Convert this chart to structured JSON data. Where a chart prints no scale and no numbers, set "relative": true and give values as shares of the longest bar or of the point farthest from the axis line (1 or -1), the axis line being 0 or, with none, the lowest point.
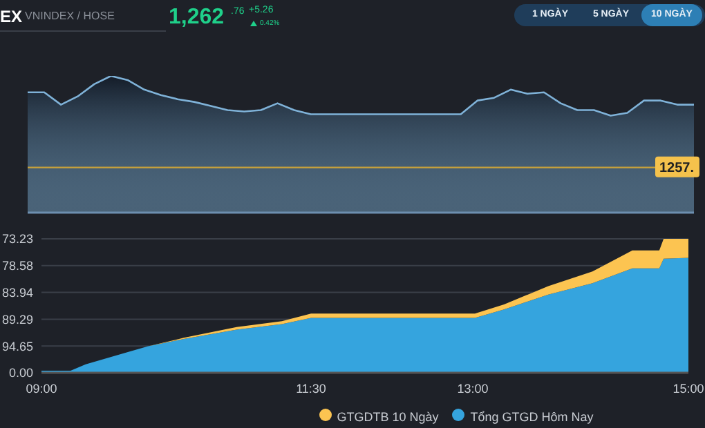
{
  "chart_data": [
    {
      "type": "area",
      "title": "EX",
      "subtitle": "VNINDEX / HOSE",
      "annotations": [
        "1,262",
        ".76",
        "+5.26",
        "0.42%",
        "1 NGÀY",
        "5 NGÀY",
        "10 NGÀY",
        "1257."
      ],
      "relative": true,
      "legend": false,
      "categories": [
        null,
        null,
        null,
        null,
        null,
        null,
        null,
        null,
        null,
        null,
        null,
        null,
        null,
        null,
        null,
        null,
        null,
        null,
        null,
        null,
        null,
        null,
        null,
        null,
        null,
        null,
        null,
        null,
        null,
        null,
        null,
        null,
        null,
        null,
        null,
        null,
        null,
        null,
        null,
        null,
        null
      ],
      "series": [
        {
          "color": "#7fb2d8",
          "values": [
            0.88,
            0.88,
            0.79,
            0.85,
            0.94,
            1.0,
            0.97,
            0.9,
            0.86,
            0.83,
            0.81,
            0.78,
            0.75,
            0.74,
            0.75,
            0.8,
            0.75,
            0.72,
            0.72,
            0.72,
            0.72,
            0.72,
            0.72,
            0.72,
            0.72,
            0.72,
            0.72,
            0.82,
            0.84,
            0.9,
            0.87,
            0.88,
            0.8,
            0.75,
            0.75,
            0.71,
            0.73,
            0.82,
            0.82,
            0.79,
            0.79
          ]
        }
      ],
      "ref_lines": [
        {
          "axis": "y",
          "value": 0.33,
          "color": "#c9a23a"
        }
      ]
    },
    {
      "type": "area",
      "stacked": true,
      "relative": true,
      "annotations": [
        "0.00",
        "94.65",
        "89.29",
        "83.94",
        "78.58",
        "73.23"
      ],
      "xlim": [
        9,
        15
      ],
      "xticks": [
        {
          "value": 9,
          "label": "09:00"
        },
        {
          "value": 11.5,
          "label": "11:30"
        },
        {
          "value": 13,
          "label": "13:00"
        },
        {
          "value": 15,
          "label": "15:00"
        }
      ],
      "grid": "y",
      "legend": "bottom",
      "x": [
        9.0,
        9.27,
        9.41,
        9.99,
        10.32,
        10.81,
        11.23,
        11.5,
        13.02,
        13.29,
        13.7,
        14.11,
        14.48,
        14.73,
        14.77,
        15.0
      ],
      "series": [
        {
          "name": "Tổng GTGD Hôm Nay",
          "color": "#35a4de",
          "values": [
            0.016,
            0.016,
            0.063,
            0.199,
            0.252,
            0.322,
            0.363,
            0.41,
            0.41,
            0.473,
            0.584,
            0.669,
            0.779,
            0.779,
            0.852,
            0.858
          ]
        },
        {
          "name": "GTGDTB 10 Ngày",
          "color": "#fcc451",
          "values": [
            0,
            0,
            0,
            0,
            0.009,
            0.019,
            0.022,
            0.032,
            0.032,
            0.037,
            0.063,
            0.088,
            0.135,
            0.135,
            0.148,
            0.142
          ]
        }
      ]
    }
  ]
}
